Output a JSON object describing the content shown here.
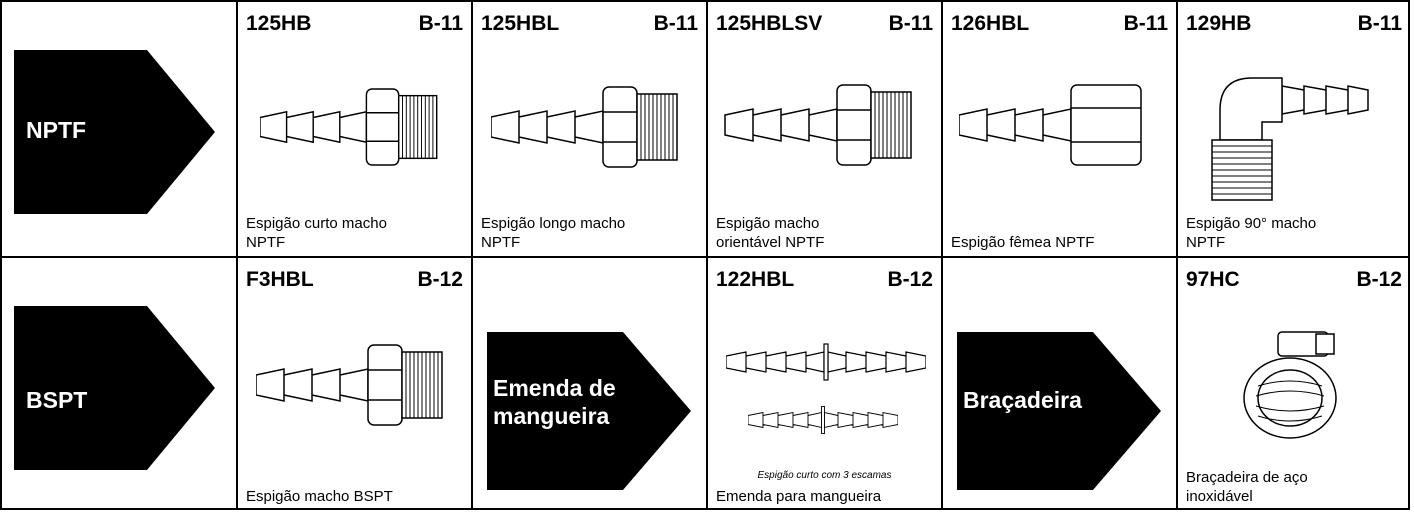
{
  "rows": [
    {
      "label": "NPTF",
      "cells": [
        {
          "code": "125HB",
          "page": "B-11",
          "caption": [
            "Espigão curto macho",
            "NPTF"
          ]
        },
        {
          "code": "125HBL",
          "page": "B-11",
          "caption": [
            "Espigão longo macho",
            "NPTF"
          ]
        },
        {
          "code": "125HBLSV",
          "page": "B-11",
          "caption": [
            "Espigão macho",
            "orientável NPTF"
          ]
        },
        {
          "code": "126HBL",
          "page": "B-11",
          "caption": [
            "Espigão fêmea NPTF"
          ]
        },
        {
          "code": "129HB",
          "page": "B-11",
          "caption": [
            "Espigão 90° macho",
            "NPTF"
          ]
        }
      ]
    },
    {
      "label": "BSPT",
      "cells": [
        {
          "code": "F3HBL",
          "page": "B-12",
          "caption": [
            "Espigão macho BSPT"
          ]
        },
        {
          "arrow": [
            "Emenda de",
            "mangueira"
          ]
        },
        {
          "code": "122HBL",
          "page": "B-12",
          "note": "Espigão curto com 3 escamas",
          "caption": [
            "Emenda para mangueira"
          ]
        },
        {
          "arrow": [
            "Braçadeira"
          ]
        },
        {
          "code": "97HC",
          "page": "B-12",
          "caption": [
            "Braçadeira de aço",
            "inoxidável"
          ]
        }
      ]
    }
  ]
}
